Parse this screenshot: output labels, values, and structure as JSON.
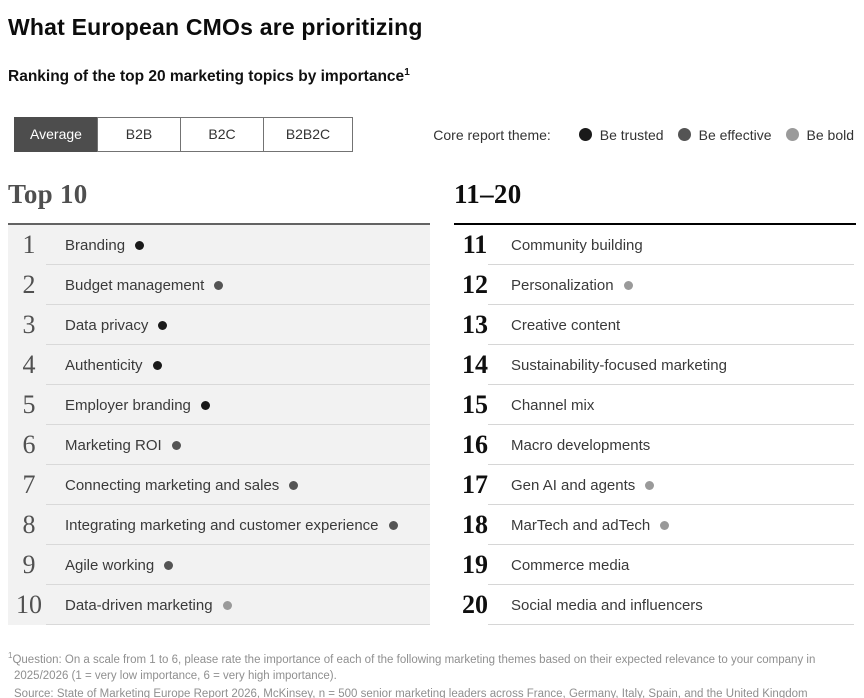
{
  "header": {
    "title": "What European CMOs are prioritizing",
    "subtitle": "Ranking of the top 20 marketing topics by importance",
    "subtitle_sup": "1"
  },
  "tabs": [
    {
      "label": "Average",
      "selected": true
    },
    {
      "label": "B2B",
      "selected": false
    },
    {
      "label": "B2C",
      "selected": false
    },
    {
      "label": "B2B2C",
      "selected": false
    }
  ],
  "legend": {
    "title": "Core report theme:",
    "items": [
      {
        "label": "Be trusted",
        "theme": "trusted"
      },
      {
        "label": "Be effective",
        "theme": "effective"
      },
      {
        "label": "Be bold",
        "theme": "bold"
      }
    ]
  },
  "theme_colors": {
    "trusted": "#1a1a1a",
    "effective": "#545454",
    "bold": "#9a9a9a"
  },
  "accent_colors": {
    "selected_tab_bg": "#4d4d4d",
    "left_row_bg": "#f2f2f2"
  },
  "columns": [
    {
      "heading": "Top 10",
      "items": [
        {
          "rank": "1",
          "label": "Branding",
          "theme": "trusted"
        },
        {
          "rank": "2",
          "label": "Budget management",
          "theme": "effective"
        },
        {
          "rank": "3",
          "label": "Data privacy",
          "theme": "trusted"
        },
        {
          "rank": "4",
          "label": "Authenticity",
          "theme": "trusted"
        },
        {
          "rank": "5",
          "label": "Employer branding",
          "theme": "trusted"
        },
        {
          "rank": "6",
          "label": "Marketing ROI",
          "theme": "effective"
        },
        {
          "rank": "7",
          "label": "Connecting marketing and sales",
          "theme": "effective"
        },
        {
          "rank": "8",
          "label": "Integrating marketing and customer experience",
          "theme": "effective"
        },
        {
          "rank": "9",
          "label": "Agile working",
          "theme": "effective"
        },
        {
          "rank": "10",
          "label": "Data-driven marketing",
          "theme": "bold"
        }
      ]
    },
    {
      "heading": "11–20",
      "items": [
        {
          "rank": "11",
          "label": "Community building",
          "theme": null
        },
        {
          "rank": "12",
          "label": "Personalization",
          "theme": "bold"
        },
        {
          "rank": "13",
          "label": "Creative content",
          "theme": null
        },
        {
          "rank": "14",
          "label": "Sustainability-focused marketing",
          "theme": null
        },
        {
          "rank": "15",
          "label": "Channel mix",
          "theme": null
        },
        {
          "rank": "16",
          "label": "Macro developments",
          "theme": null
        },
        {
          "rank": "17",
          "label": "Gen AI and agents",
          "theme": "bold"
        },
        {
          "rank": "18",
          "label": "MarTech and adTech",
          "theme": "bold"
        },
        {
          "rank": "19",
          "label": "Commerce media",
          "theme": null
        },
        {
          "rank": "20",
          "label": "Social media and influencers",
          "theme": null
        }
      ]
    }
  ],
  "footnote": {
    "sup": "1",
    "question": "Question: On a scale from 1 to 6, please rate the importance of each of the following marketing themes based on their expected relevance to your company in 2025/2026 (1 = very low importance, 6 = very high importance).",
    "source": "Source: State of Marketing Europe Report 2026, McKinsey, n = 500 senior marketing leaders across France, Germany, Italy, Spain, and the United Kingdom"
  },
  "chart_data": {
    "type": "table",
    "title": "What European CMOs are prioritizing",
    "subtitle": "Ranking of the top 20 marketing topics by importance",
    "selected_filter": "Average",
    "filters": [
      "Average",
      "B2B",
      "B2C",
      "B2B2C"
    ],
    "legend": [
      "Be trusted",
      "Be effective",
      "Be bold"
    ],
    "columns": [
      "rank",
      "topic",
      "core_report_theme"
    ],
    "rows": [
      [
        1,
        "Branding",
        "Be trusted"
      ],
      [
        2,
        "Budget management",
        "Be effective"
      ],
      [
        3,
        "Data privacy",
        "Be trusted"
      ],
      [
        4,
        "Authenticity",
        "Be trusted"
      ],
      [
        5,
        "Employer branding",
        "Be trusted"
      ],
      [
        6,
        "Marketing ROI",
        "Be effective"
      ],
      [
        7,
        "Connecting marketing and sales",
        "Be effective"
      ],
      [
        8,
        "Integrating marketing and customer experience",
        "Be effective"
      ],
      [
        9,
        "Agile working",
        "Be effective"
      ],
      [
        10,
        "Data-driven marketing",
        "Be bold"
      ],
      [
        11,
        "Community building",
        null
      ],
      [
        12,
        "Personalization",
        "Be bold"
      ],
      [
        13,
        "Creative content",
        null
      ],
      [
        14,
        "Sustainability-focused marketing",
        null
      ],
      [
        15,
        "Channel mix",
        null
      ],
      [
        16,
        "Macro developments",
        null
      ],
      [
        17,
        "Gen AI and agents",
        "Be bold"
      ],
      [
        18,
        "MarTech and adTech",
        "Be bold"
      ],
      [
        19,
        "Commerce media",
        null
      ],
      [
        20,
        "Social media and influencers",
        null
      ]
    ]
  }
}
